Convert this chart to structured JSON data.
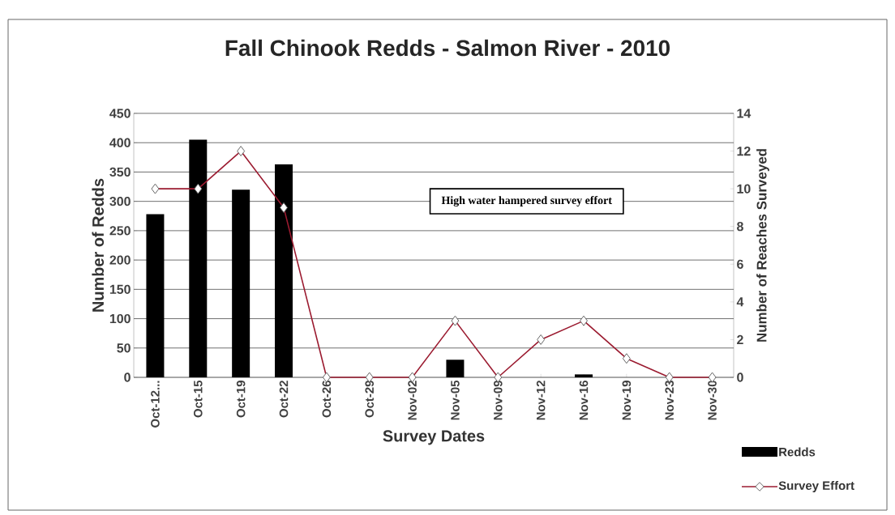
{
  "chart_data": {
    "type": "bar",
    "title": "Fall Chinook Redds - Salmon River - 2010",
    "xlabel": "Survey Dates",
    "ylabel": "Number of Redds",
    "y2label": "Number of Reaches Surveyed",
    "annotations": [
      "High water hampered survey effort"
    ],
    "categories": [
      "Oct-12...",
      "Oct-15",
      "Oct-19",
      "Oct-22",
      "Oct-26",
      "Oct-29",
      "Nov-02",
      "Nov-05",
      "Nov-09",
      "Nov-12",
      "Nov-16",
      "Nov-19",
      "Nov-23",
      "Nov-30"
    ],
    "series": [
      {
        "name": "Redds",
        "color": "#000000",
        "values": [
          278,
          405,
          320,
          363,
          0,
          0,
          0,
          30,
          0,
          0,
          5,
          0,
          0,
          0
        ]
      },
      {
        "name": "Survey Effort",
        "type": "line",
        "axis": "y2",
        "color": "#9b1b30",
        "marker": "diamond",
        "values": [
          10,
          10,
          12,
          9,
          0,
          0,
          0,
          3,
          0,
          2,
          3,
          1,
          0,
          0
        ]
      }
    ],
    "ylim": [
      0,
      450
    ],
    "yticks": [
      0,
      50,
      100,
      150,
      200,
      250,
      300,
      350,
      400,
      450
    ],
    "y2lim": [
      0,
      14
    ],
    "y2ticks": [
      0,
      2,
      4,
      6,
      8,
      10,
      12,
      14
    ],
    "grid": "y",
    "legend": "bottom right"
  }
}
